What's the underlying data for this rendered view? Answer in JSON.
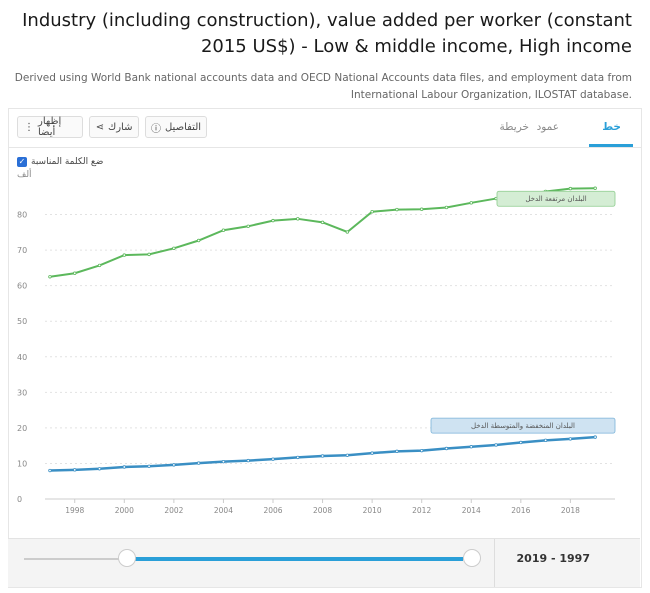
{
  "header": {
    "title": "Industry (including construction), value added per worker (constant 2015 US$) - Low & middle income, High income",
    "subtitle": "Derived using World Bank national accounts data and OECD National Accounts data files, and employment data from International Labour Organization, ILOSTAT database."
  },
  "tabs": [
    {
      "label": "خط",
      "active": true
    },
    {
      "label": "عمود",
      "active": false
    },
    {
      "label": "خريطة",
      "active": false
    }
  ],
  "toolbar": {
    "details_label": "التفاصيل",
    "share_label": "شارك",
    "show_also_label": "إظهار أيضا"
  },
  "options": {
    "fit_label": "ضع الكلمة المناسبة",
    "fit_checked": true,
    "unit_label": "ألف"
  },
  "colors": {
    "high_income": "#5cb85c",
    "low_middle_income": "#3a8fc4",
    "accent": "#2a9fd8"
  },
  "chart_data": {
    "type": "line",
    "x": [
      1997,
      1998,
      1999,
      2000,
      2001,
      2002,
      2003,
      2004,
      2005,
      2006,
      2007,
      2008,
      2009,
      2010,
      2011,
      2012,
      2013,
      2014,
      2015,
      2016,
      2017,
      2018,
      2019
    ],
    "xticks": [
      1998,
      2000,
      2002,
      2004,
      2006,
      2008,
      2010,
      2012,
      2014,
      2016,
      2018
    ],
    "yticks": [
      0,
      10,
      20,
      30,
      40,
      50,
      60,
      70,
      80
    ],
    "ylim": [
      0,
      90
    ],
    "grid": true,
    "series": [
      {
        "name": "البلدان مرتفعة الدخل",
        "color": "#5cb85c",
        "values": [
          62.5,
          63.5,
          65.7,
          68.6,
          68.8,
          70.5,
          72.7,
          75.6,
          76.7,
          78.3,
          78.8,
          77.8,
          75.1,
          80.8,
          81.4,
          81.5,
          82.0,
          83.3,
          84.5,
          85.5,
          86.5,
          87.3,
          87.4
        ]
      },
      {
        "name": "البلدان المنخفضة والمتوسطة الدخل",
        "color": "#3a8fc4",
        "values": [
          8.0,
          8.2,
          8.5,
          9.0,
          9.2,
          9.6,
          10.1,
          10.5,
          10.8,
          11.2,
          11.7,
          12.1,
          12.3,
          12.9,
          13.4,
          13.6,
          14.2,
          14.7,
          15.2,
          15.9,
          16.5,
          16.9,
          17.4
        ]
      }
    ]
  },
  "range": {
    "start": 1997,
    "end": 2019,
    "label": "2019 - 1997"
  }
}
